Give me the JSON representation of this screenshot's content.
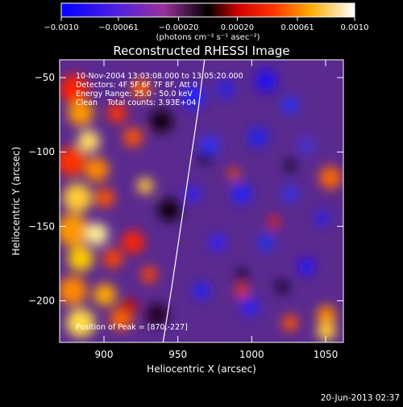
{
  "chart_data": {
    "type": "heatmap",
    "title": "Reconstructed RHESSI Image",
    "xlabel": "Heliocentric X (arcsec)",
    "ylabel": "Heliocentric Y (arcsec)",
    "xlim": [
      870,
      1062
    ],
    "ylim": [
      -228,
      -38
    ],
    "x_ticks": [
      900,
      950,
      1000,
      1050
    ],
    "y_ticks": [
      -50,
      -100,
      -150,
      -200
    ],
    "x_tick_labels": [
      "900",
      "950",
      "1000",
      "1050"
    ],
    "y_tick_labels": [
      "−50",
      "−100",
      "−150",
      "−200"
    ],
    "colorbar": {
      "range": [
        -0.001,
        0.001
      ],
      "ticks": [
        -0.001,
        -0.00061,
        -0.0002,
        0.0002,
        0.00061,
        0.001
      ],
      "tick_labels": [
        "−0.0010",
        "−0.00061",
        "−0.00020",
        "0.00020",
        "0.00061",
        "0.0010"
      ],
      "units_label": "(photons cm⁻² s⁻¹ asec⁻²)",
      "colormap": [
        "#0000ff",
        "#6633cc",
        "#cc3399",
        "#000000",
        "#ff2200",
        "#ff9900",
        "#ffffff"
      ]
    },
    "limb_curve": {
      "x": [
        940,
        946,
        952,
        958,
        964,
        968
      ],
      "y": [
        -228,
        -190,
        -150,
        -110,
        -70,
        -38
      ]
    },
    "peak": [
      870,
      -227
    ]
  },
  "info_lines": [
    "10-Nov-2004 13:03:08.000 to 13:05:20.000",
    "Detectors: 4F 5F 6F 7F 8F, Att 0",
    "Energy Range: 25.0 - 50.0 keV",
    "Clean    Total counts: 3.93E+04"
  ],
  "peak_label": "Position of Peak = [870,-227]",
  "timestamp": "20-Jun-2013 02:37"
}
